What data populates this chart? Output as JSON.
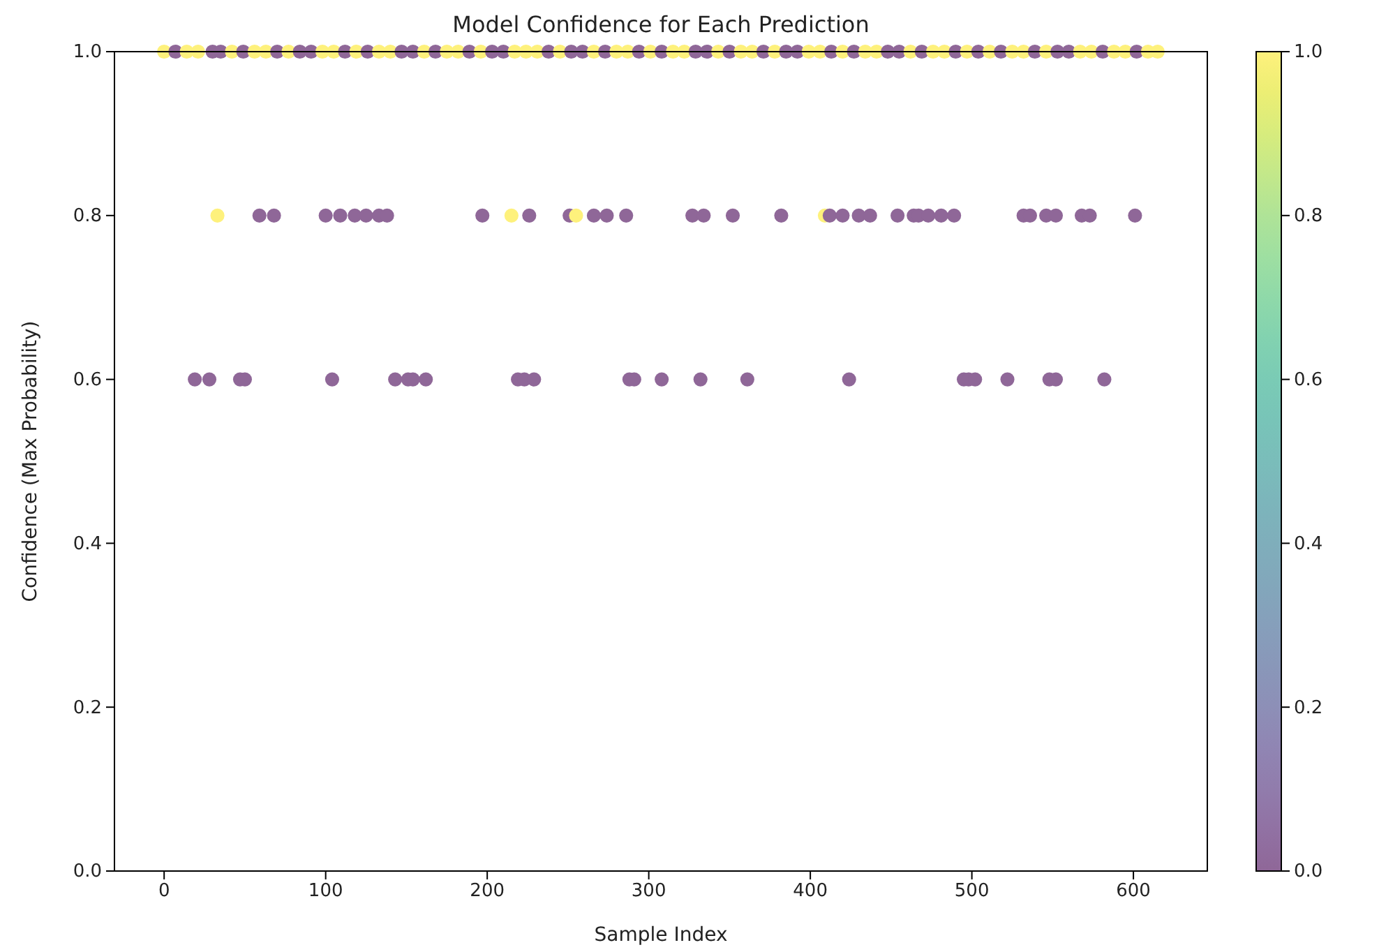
{
  "chart_data": {
    "type": "scatter",
    "title": "Model Confidence for Each Prediction",
    "xlabel": "Sample Index",
    "ylabel": "Confidence (Max Probability)",
    "xlim": [
      -30.75,
      645.75
    ],
    "xticks": [
      0,
      100,
      200,
      300,
      400,
      500,
      600
    ],
    "ylim": [
      0,
      1
    ],
    "yticks": [
      {
        "value": 0,
        "label": "0.0"
      },
      {
        "value": 0.2,
        "label": "0.2"
      },
      {
        "value": 0.4,
        "label": "0.4"
      },
      {
        "value": 0.6,
        "label": "0.6"
      },
      {
        "value": 0.8,
        "label": "0.8"
      },
      {
        "value": 1,
        "label": "1.0"
      }
    ],
    "clim": [
      0,
      1
    ],
    "cticks": [
      {
        "value": 0,
        "label": "0.0"
      },
      {
        "value": 0.2,
        "label": "0.2"
      },
      {
        "value": 0.4,
        "label": "0.4"
      },
      {
        "value": 0.6,
        "label": "0.6"
      },
      {
        "value": 0.8,
        "label": "0.8"
      },
      {
        "value": 1,
        "label": "1.0"
      }
    ],
    "marker": "circle",
    "grid": false,
    "series": [
      {
        "x": [
          0,
          7,
          14,
          21,
          30,
          35,
          42,
          49,
          56,
          63,
          70,
          77,
          84,
          91,
          98,
          105,
          112,
          119,
          126,
          133,
          140,
          147,
          154,
          161,
          168,
          175,
          182,
          189,
          196,
          203,
          210,
          217,
          224,
          231,
          238,
          245,
          252,
          259,
          266,
          273,
          280,
          287,
          294,
          301,
          308,
          315,
          322,
          329,
          336,
          343,
          350,
          357,
          364,
          371,
          378,
          385,
          392,
          399,
          406,
          413,
          420,
          427,
          434,
          441,
          448,
          455,
          462,
          469,
          476,
          483,
          490,
          497,
          504,
          511,
          518,
          525,
          532,
          539,
          546,
          553,
          560,
          567,
          574,
          581,
          588,
          595,
          602,
          609,
          615,
          33,
          59,
          68,
          100,
          109,
          118,
          125,
          133,
          138,
          197,
          215,
          226,
          251,
          255,
          266,
          274,
          286,
          327,
          334,
          352,
          382,
          409,
          412,
          420,
          430,
          437,
          454,
          464,
          467,
          473,
          481,
          489,
          532,
          536,
          546,
          552,
          568,
          573,
          601,
          19,
          28,
          47,
          50,
          104,
          143,
          151,
          154,
          162,
          219,
          223,
          229,
          288,
          291,
          308,
          332,
          361,
          424,
          495,
          498,
          502,
          522,
          548,
          552,
          582
        ],
        "values": [
          1,
          1,
          1,
          1,
          1,
          1,
          1,
          1,
          1,
          1,
          1,
          1,
          1,
          1,
          1,
          1,
          1,
          1,
          1,
          1,
          1,
          1,
          1,
          1,
          1,
          1,
          1,
          1,
          1,
          1,
          1,
          1,
          1,
          1,
          1,
          1,
          1,
          1,
          1,
          1,
          1,
          1,
          1,
          1,
          1,
          1,
          1,
          1,
          1,
          1,
          1,
          1,
          1,
          1,
          1,
          1,
          1,
          1,
          1,
          1,
          1,
          1,
          1,
          1,
          1,
          1,
          1,
          1,
          1,
          1,
          1,
          1,
          1,
          1,
          1,
          1,
          1,
          1,
          1,
          1,
          1,
          1,
          1,
          1,
          1,
          1,
          1,
          1,
          1,
          0.8,
          0.8,
          0.8,
          0.8,
          0.8,
          0.8,
          0.8,
          0.8,
          0.8,
          0.8,
          0.8,
          0.8,
          0.8,
          0.8,
          0.8,
          0.8,
          0.8,
          0.8,
          0.8,
          0.8,
          0.8,
          0.8,
          0.8,
          0.8,
          0.8,
          0.8,
          0.8,
          0.8,
          0.8,
          0.8,
          0.8,
          0.8,
          0.8,
          0.8,
          0.8,
          0.8,
          0.8,
          0.8,
          0.8,
          0.6,
          0.6,
          0.6,
          0.6,
          0.6,
          0.6,
          0.6,
          0.6,
          0.6,
          0.6,
          0.6,
          0.6,
          0.6,
          0.6,
          0.6,
          0.6,
          0.6,
          0.6,
          0.6,
          0.6,
          0.6,
          0.6,
          0.6,
          0.6,
          0.6
        ],
        "cvalues": [
          1,
          0,
          1,
          1,
          0,
          0,
          1,
          0,
          1,
          1,
          0,
          1,
          0,
          0,
          1,
          1,
          0,
          1,
          0,
          1,
          1,
          0,
          0,
          1,
          0,
          1,
          1,
          0,
          1,
          0,
          0,
          1,
          1,
          1,
          0,
          1,
          0,
          0,
          1,
          0,
          1,
          1,
          0,
          1,
          0,
          1,
          1,
          0,
          0,
          1,
          0,
          1,
          1,
          0,
          1,
          0,
          0,
          1,
          1,
          0,
          1,
          0,
          1,
          1,
          0,
          0,
          1,
          0,
          1,
          1,
          0,
          1,
          0,
          1,
          0,
          1,
          1,
          0,
          1,
          0,
          0,
          1,
          1,
          0,
          1,
          1,
          0,
          1,
          1,
          1,
          0,
          0,
          0,
          0,
          0,
          0,
          0,
          0,
          0,
          1,
          0,
          0,
          1,
          0,
          0,
          0,
          0,
          0,
          0,
          0,
          1,
          0,
          0,
          0,
          0,
          0,
          0,
          0,
          0,
          0,
          0,
          0,
          0,
          0,
          0,
          0,
          0,
          0,
          0,
          0,
          0,
          0,
          0,
          0,
          0,
          0,
          0,
          0,
          0,
          0,
          0,
          0,
          0,
          0,
          0,
          0,
          0,
          0,
          0,
          0,
          0,
          0,
          0
        ]
      }
    ]
  }
}
